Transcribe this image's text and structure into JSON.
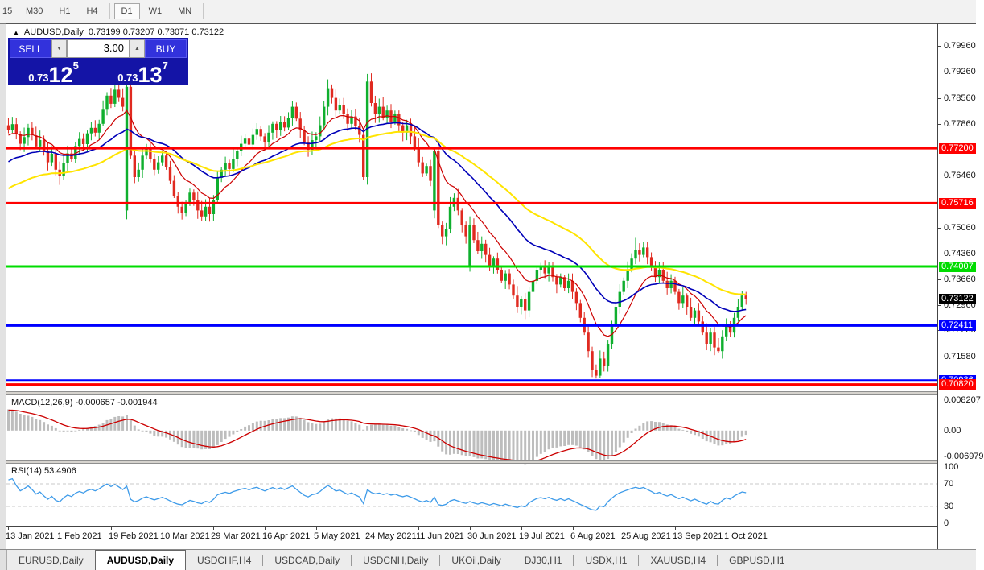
{
  "toolbar": {
    "items": [
      "15",
      "M30",
      "H1",
      "H4",
      "D1",
      "W1",
      "MN"
    ],
    "active": "D1"
  },
  "window": {
    "collapse_icon": "▲",
    "title": "AUDUSD,Daily",
    "ohlc": "0.73199 0.73207 0.73071 0.73122"
  },
  "trade": {
    "sell": "SELL",
    "buy": "BUY",
    "volume": "3.00",
    "bid_prefix": "0.73",
    "bid_big": "12",
    "bid_sup": "5",
    "ask_prefix": "0.73",
    "ask_big": "13",
    "ask_sup": "7"
  },
  "price_axis": {
    "ticks": [
      "0.79960",
      "0.79260",
      "0.78560",
      "0.77860",
      "0.76460",
      "0.75060",
      "0.74360",
      "0.73660",
      "0.72960",
      "0.72280",
      "0.71580"
    ],
    "badges": [
      {
        "value": "0.77200",
        "color": "#FF0000"
      },
      {
        "value": "0.75716",
        "color": "#FF0000"
      },
      {
        "value": "0.74007",
        "color": "#00DC00"
      },
      {
        "value": "0.73122",
        "color": "#000000"
      },
      {
        "value": "0.72411",
        "color": "#0000FF"
      },
      {
        "value": "0.70936",
        "color": "#0000FF"
      },
      {
        "value": "0.70820",
        "color": "#FF0000"
      }
    ]
  },
  "macd": {
    "label": "MACD(12,26,9) -0.000657 -0.001944",
    "axis": [
      "0.008207",
      "0.00",
      "-0.006979"
    ]
  },
  "rsi": {
    "label": "RSI(14) 53.4906",
    "axis": [
      "100",
      "70",
      "30",
      "0"
    ]
  },
  "dates": [
    "13 Jan 2021",
    "1 Feb 2021",
    "19 Feb 2021",
    "10 Mar 2021",
    "29 Mar 2021",
    "16 Apr 2021",
    "5 May 2021",
    "24 May 2021",
    "11 Jun 2021",
    "30 Jun 2021",
    "19 Jul 2021",
    "6 Aug 2021",
    "25 Aug 2021",
    "13 Sep 2021",
    "1 Oct 2021"
  ],
  "tabs": {
    "active_index": 1,
    "items": [
      "EURUSD,Daily",
      "AUDUSD,Daily",
      "USDCHF,H4",
      "USDCAD,Daily",
      "USDCNH,Daily",
      "UKOil,Daily",
      "DJ30,H1",
      "USDX,H1",
      "XAUUSD,H4",
      "GBPUSD,H1"
    ]
  },
  "chart_data": {
    "type": "candlestick",
    "symbol": "AUDUSD",
    "timeframe": "Daily",
    "last_close": 0.73122,
    "closes": [
      0.777,
      0.7785,
      0.7758,
      0.7732,
      0.775,
      0.7775,
      0.7755,
      0.7725,
      0.7742,
      0.7712,
      0.7682,
      0.7705,
      0.7662,
      0.7645,
      0.768,
      0.7706,
      0.769,
      0.7726,
      0.7745,
      0.7731,
      0.776,
      0.7775,
      0.7762,
      0.7786,
      0.7824,
      0.7862,
      0.784,
      0.7878,
      0.7856,
      0.7832,
      0.7886,
      0.77,
      0.7642,
      0.7662,
      0.77,
      0.7722,
      0.769,
      0.7662,
      0.7682,
      0.77,
      0.767,
      0.7632,
      0.7592,
      0.7562,
      0.7546,
      0.7572,
      0.76,
      0.758,
      0.7552,
      0.7536,
      0.7562,
      0.7542,
      0.758,
      0.764,
      0.7662,
      0.768,
      0.7664,
      0.7692,
      0.7712,
      0.7732,
      0.7746,
      0.773,
      0.7756,
      0.7772,
      0.7752,
      0.7736,
      0.7762,
      0.7786,
      0.777,
      0.7792,
      0.7776,
      0.7802,
      0.7832,
      0.78,
      0.777,
      0.7736,
      0.7716,
      0.7742,
      0.7752,
      0.7782,
      0.7832,
      0.7882,
      0.7856,
      0.7822,
      0.7836,
      0.7812,
      0.7786,
      0.7806,
      0.778,
      0.7756,
      0.7642,
      0.79,
      0.7842,
      0.7812,
      0.7832,
      0.7802,
      0.7822,
      0.7792,
      0.7812,
      0.7782,
      0.7762,
      0.7782,
      0.7752,
      0.7722,
      0.7682,
      0.7652,
      0.7672,
      0.7632,
      0.7712,
      0.7512,
      0.7482,
      0.7502,
      0.7562,
      0.7586,
      0.7552,
      0.7512,
      0.7482,
      0.7512,
      0.7472,
      0.7442,
      0.7462,
      0.7432,
      0.7402,
      0.7422,
      0.7392,
      0.7362,
      0.7382,
      0.7352,
      0.7322,
      0.7292,
      0.7312,
      0.7282,
      0.7332,
      0.7362,
      0.7392,
      0.7402,
      0.7382,
      0.7402,
      0.7372,
      0.7352,
      0.7372,
      0.7342,
      0.7362,
      0.7332,
      0.7302,
      0.7262,
      0.7222,
      0.7172,
      0.7122,
      0.7106,
      0.7152,
      0.7132,
      0.7192,
      0.7242,
      0.7292,
      0.7332,
      0.7362,
      0.7392,
      0.7422,
      0.7446,
      0.7432,
      0.7452,
      0.7426,
      0.7402,
      0.7372,
      0.7392,
      0.7362,
      0.7342,
      0.7362,
      0.7332,
      0.7302,
      0.7322,
      0.7292,
      0.7262,
      0.7282,
      0.7252,
      0.7222,
      0.7192,
      0.7222,
      0.7182,
      0.7172,
      0.7212,
      0.7242,
      0.7222,
      0.7262,
      0.7292,
      0.7322,
      0.73122
    ],
    "open_overrides": {
      "30": 0.7552,
      "108": 0.7552,
      "117": 0.7402
    },
    "high_overrides": {
      "30": 0.7896,
      "81": 0.7906,
      "159": 0.7478
    },
    "low_overrides": {
      "149": 0.7098,
      "180": 0.7166
    },
    "bull_color": "#0FAF2E",
    "bear_color": "#E02A20",
    "ma": [
      {
        "period": 12,
        "color": "#CC0000",
        "width": 1.2
      },
      {
        "period": 30,
        "color": "#0000B8",
        "width": 1.6
      },
      {
        "period": 55,
        "color": "#FFE400",
        "width": 2
      }
    ],
    "hlines": [
      {
        "value": 0.772,
        "color": "#FF0000",
        "width": 3
      },
      {
        "value": 0.75716,
        "color": "#FF0000",
        "width": 3
      },
      {
        "value": 0.74007,
        "color": "#00DC00",
        "width": 3
      },
      {
        "value": 0.72411,
        "color": "#0000FF",
        "width": 3
      },
      {
        "value": 0.70936,
        "color": "#0000FF",
        "width": 2
      },
      {
        "value": 0.7082,
        "color": "#FF0000",
        "width": 3
      }
    ],
    "macd_params": {
      "fast": 12,
      "slow": 26,
      "signal": 9,
      "hist_color": "#BDBDBD",
      "signal_color": "#CC0000",
      "ymax": 0.008207,
      "ymin": -0.006979
    },
    "rsi_params": {
      "period": 14,
      "color": "#3E9BE9",
      "levels": [
        30,
        70
      ],
      "level_color": "#C8C8C8"
    },
    "label_every": 13,
    "right_gap_slots": 48,
    "prehistory": {
      "bars": 60,
      "from": 0.735,
      "to": 0.777
    }
  }
}
